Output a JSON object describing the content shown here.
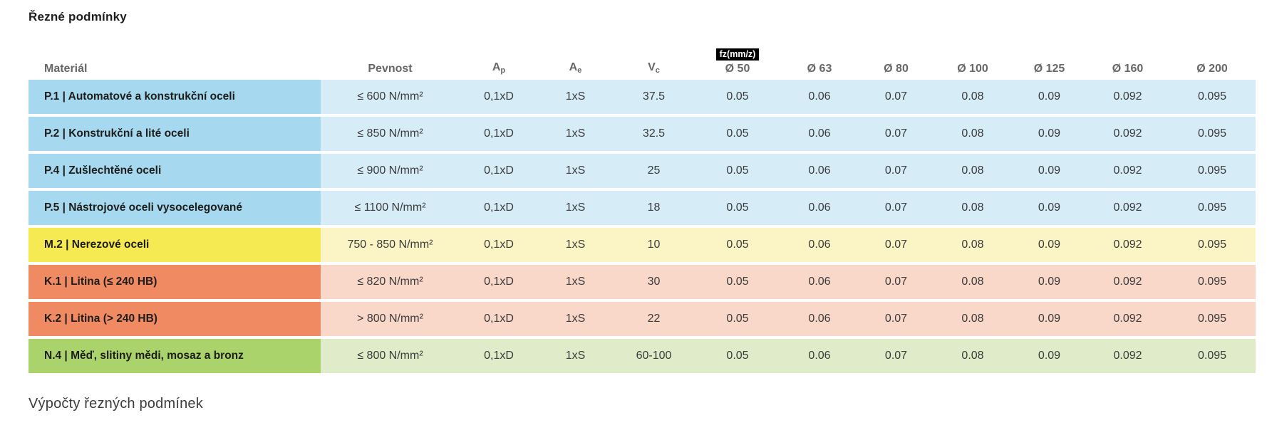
{
  "page": {
    "title": "Řezné podmínky",
    "footer_heading": "Výpočty řezných podmínek"
  },
  "table": {
    "fz_badge": "fz(mm/z)",
    "columns": [
      {
        "label": "Materiál"
      },
      {
        "label": "Pevnost"
      },
      {
        "label": "A",
        "sub": "p"
      },
      {
        "label": "A",
        "sub": "e"
      },
      {
        "label": "V",
        "sub": "c"
      },
      {
        "label": "Ø 50",
        "badge": true
      },
      {
        "label": "Ø 63"
      },
      {
        "label": "Ø 80"
      },
      {
        "label": "Ø 100"
      },
      {
        "label": "Ø 125"
      },
      {
        "label": "Ø 160"
      },
      {
        "label": "Ø 200"
      }
    ],
    "rows": [
      {
        "material": "P.1 | Automatové a konstrukční oceli",
        "color": "blue",
        "cells": [
          "≤ 600 N/mm²",
          "0,1xD",
          "1xS",
          "37.5",
          "0.05",
          "0.06",
          "0.07",
          "0.08",
          "0.09",
          "0.092",
          "0.095"
        ]
      },
      {
        "material": "P.2 | Konstrukční a lité oceli",
        "color": "blue",
        "cells": [
          "≤ 850 N/mm²",
          "0,1xD",
          "1xS",
          "32.5",
          "0.05",
          "0.06",
          "0.07",
          "0.08",
          "0.09",
          "0.092",
          "0.095"
        ]
      },
      {
        "material": "P.4 | Zušlechtěné oceli",
        "color": "blue",
        "cells": [
          "≤ 900 N/mm²",
          "0,1xD",
          "1xS",
          "25",
          "0.05",
          "0.06",
          "0.07",
          "0.08",
          "0.09",
          "0.092",
          "0.095"
        ]
      },
      {
        "material": "P.5 | Nástrojové oceli vysocelegované",
        "color": "blue",
        "cells": [
          "≤ 1100 N/mm²",
          "0,1xD",
          "1xS",
          "18",
          "0.05",
          "0.06",
          "0.07",
          "0.08",
          "0.09",
          "0.092",
          "0.095"
        ]
      },
      {
        "material": "M.2 | Nerezové oceli",
        "color": "yellow",
        "cells": [
          "750 - 850 N/mm²",
          "0,1xD",
          "1xS",
          "10",
          "0.05",
          "0.06",
          "0.07",
          "0.08",
          "0.09",
          "0.092",
          "0.095"
        ]
      },
      {
        "material": "K.1 | Litina (≤ 240 HB)",
        "color": "orange",
        "cells": [
          "≤ 820 N/mm²",
          "0,1xD",
          "1xS",
          "30",
          "0.05",
          "0.06",
          "0.07",
          "0.08",
          "0.09",
          "0.092",
          "0.095"
        ]
      },
      {
        "material": "K.2 | Litina (> 240 HB)",
        "color": "orange",
        "cells": [
          "> 800 N/mm²",
          "0,1xD",
          "1xS",
          "22",
          "0.05",
          "0.06",
          "0.07",
          "0.08",
          "0.09",
          "0.092",
          "0.095"
        ]
      },
      {
        "material": "N.4 | Měď, slitiny mědi, mosaz a bronz",
        "color": "green",
        "cells": [
          "≤ 800 N/mm²",
          "0,1xD",
          "1xS",
          "60-100",
          "0.05",
          "0.06",
          "0.07",
          "0.08",
          "0.09",
          "0.092",
          "0.095"
        ]
      }
    ]
  },
  "colors": {
    "blue": {
      "strong": "#a6d9f0",
      "light": "#d6ecf7"
    },
    "yellow": {
      "strong": "#f6ea52",
      "light": "#fbf5c5"
    },
    "orange": {
      "strong": "#f08a63",
      "light": "#f9d7c9"
    },
    "green": {
      "strong": "#abd36b",
      "light": "#e0ecc9"
    },
    "badge_bg": "#000000",
    "badge_text": "#ffffff"
  }
}
